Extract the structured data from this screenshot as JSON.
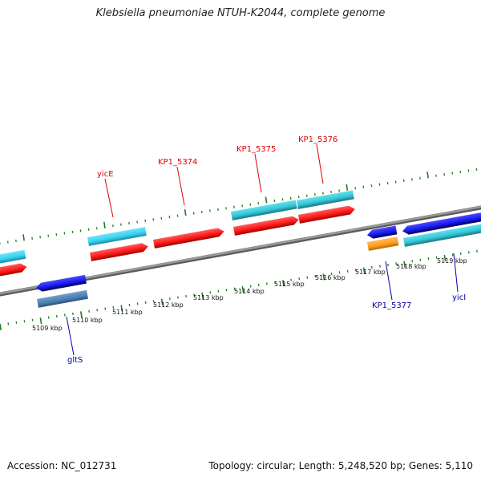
{
  "title": "Klebsiella pneumoniae NTUH-K2044, complete genome",
  "footer": {
    "accession": "Accession: NC_012731",
    "stats": "Topology: circular; Length: 5,248,520 bp; Genes: 5,110"
  },
  "colors": {
    "backbone": "#8c8c8c",
    "tick": "#1e7d1e",
    "label_forward": "#dd0000",
    "label_reverse": "#0000aa",
    "cds_forward": "#ff1a1a",
    "cds_forward_shade": "#a30000",
    "cds_reverse": "#1a1aee",
    "cds_reverse_shade": "#00005a",
    "rna_forward": "#35c8d8",
    "rna_forward_shade": "#1a7480",
    "rna_bright": "#3ad4f0",
    "misc": "#4a7fb0",
    "orange": "#ff9c1a"
  },
  "scale_labels": [
    "5109 kbp",
    "5110 kbp",
    "5111 kbp",
    "5112 kbp",
    "5113 kbp",
    "5114 kbp",
    "5115 kbp",
    "5116 kbp",
    "5117 kbp",
    "5118 kbp",
    "5119 kbp"
  ],
  "gene_labels": {
    "yicE": "yicE",
    "KP1_5374": "KP1_5374",
    "KP1_5375": "KP1_5375",
    "KP1_5376": "KP1_5376",
    "gltS": "gltS",
    "KP1_5377": "KP1_5377",
    "yicI": "yicI"
  }
}
